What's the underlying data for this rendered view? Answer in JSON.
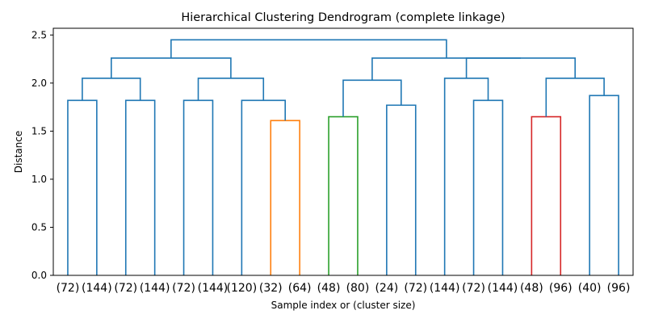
{
  "chart_data": {
    "type": "dendrogram",
    "title": "Hierarchical Clustering Dendrogram (complete linkage)",
    "xlabel": "Sample index or (cluster size)",
    "ylabel": "Distance",
    "ylim": [
      0,
      2.57
    ],
    "yticks": [
      "0.0",
      "0.5",
      "1.0",
      "1.5",
      "2.0",
      "2.5"
    ],
    "leaf_labels": [
      "(72)",
      "(144)",
      "(72)",
      "(144)",
      "(72)",
      "(144)",
      "(120)",
      "(32)",
      "(64)",
      "(48)",
      "(80)",
      "(24)",
      "(72)",
      "(144)",
      "(72)",
      "(144)",
      "(48)",
      "(96)",
      "(40)",
      "(96)"
    ],
    "colors": {
      "above": "#1f77b4",
      "orange": "#ff7f0e",
      "green": "#2ca02c",
      "red": "#d62728"
    },
    "merges": [
      {
        "id": "m1",
        "left": 0,
        "right": 1,
        "height": 1.82,
        "color": "above"
      },
      {
        "id": "m2",
        "left": 2,
        "right": 3,
        "height": 1.82,
        "color": "above"
      },
      {
        "id": "m3",
        "left": "m1",
        "right": "m2",
        "height": 2.05,
        "color": "above"
      },
      {
        "id": "m4",
        "left": 4,
        "right": 5,
        "height": 1.82,
        "color": "above"
      },
      {
        "id": "m5",
        "left": 7,
        "right": 8,
        "height": 1.61,
        "color": "orange"
      },
      {
        "id": "m6",
        "left": 6,
        "right": "m5",
        "height": 1.82,
        "color": "above"
      },
      {
        "id": "m7",
        "left": "m4",
        "right": "m6",
        "height": 2.05,
        "color": "above"
      },
      {
        "id": "m8",
        "left": "m3",
        "right": "m7",
        "height": 2.26,
        "color": "above"
      },
      {
        "id": "m9",
        "left": 9,
        "right": 10,
        "height": 1.65,
        "color": "green"
      },
      {
        "id": "m10",
        "left": 11,
        "right": 12,
        "height": 1.77,
        "color": "above"
      },
      {
        "id": "m11",
        "left": "m9",
        "right": "m10",
        "height": 2.03,
        "color": "above"
      },
      {
        "id": "m12",
        "left": 14,
        "right": 15,
        "height": 1.82,
        "color": "above"
      },
      {
        "id": "m13",
        "left": 13,
        "right": "m12",
        "height": 2.05,
        "color": "above"
      },
      {
        "id": "m14",
        "left": 16,
        "right": 17,
        "height": 1.65,
        "color": "red"
      },
      {
        "id": "m15",
        "left": 18,
        "right": 19,
        "height": 1.87,
        "color": "above"
      },
      {
        "id": "m16",
        "left": "m14",
        "right": "m15",
        "height": 2.05,
        "color": "above"
      },
      {
        "id": "m17",
        "left": "m13",
        "right": "m16",
        "height": 2.26,
        "color": "above"
      },
      {
        "id": "m18",
        "left": "m11",
        "right": "m17",
        "height": 2.26,
        "color": "above"
      },
      {
        "id": "m19",
        "left": "m8",
        "right": "m18",
        "height": 2.45,
        "color": "above"
      }
    ]
  }
}
